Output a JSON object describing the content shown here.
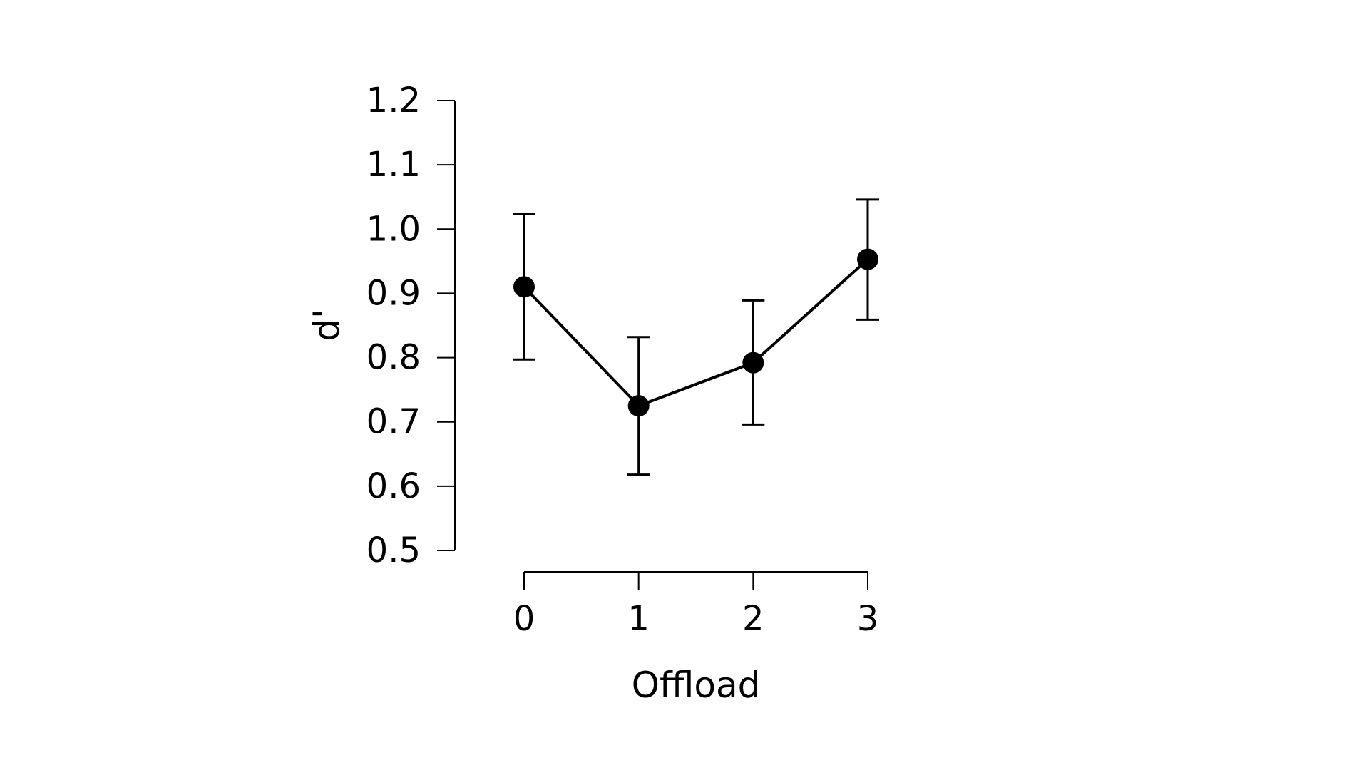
{
  "chart_data": {
    "type": "line",
    "xlabel": "Offload",
    "ylabel": "d'",
    "x": [
      0,
      1,
      2,
      3
    ],
    "x_ticks": [
      "0",
      "1",
      "2",
      "3"
    ],
    "xlim": [
      0,
      3
    ],
    "y_ticks": [
      "0.5",
      "0.6",
      "0.7",
      "0.8",
      "0.9",
      "1.0",
      "1.1",
      "1.2"
    ],
    "ylim": [
      0.5,
      1.2
    ],
    "grid": false,
    "series": [
      {
        "values": [
          0.91,
          0.725,
          0.792,
          0.953
        ],
        "error_low": [
          0.797,
          0.618,
          0.696,
          0.859
        ],
        "error_high": [
          1.023,
          0.832,
          0.889,
          1.046
        ],
        "color": "#000000"
      }
    ]
  }
}
